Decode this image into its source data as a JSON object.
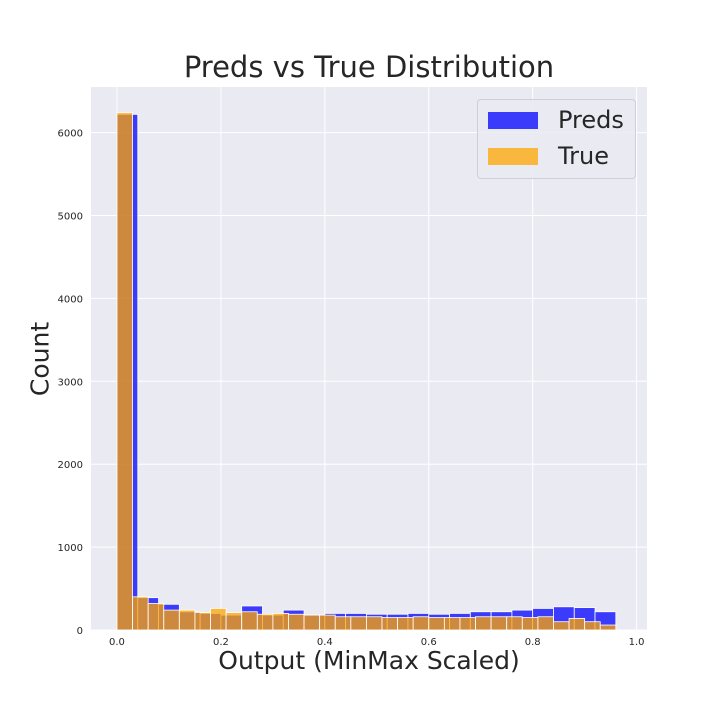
{
  "colors": {
    "background": "#eaeaf2",
    "grid": "#ffffff",
    "preds": "#0000ff",
    "true": "#ffa500",
    "text": "#262626"
  },
  "chart_data": {
    "type": "bar",
    "subtype": "overlapping-histogram",
    "title": "Preds vs True Distribution",
    "xlabel": "Output (MinMax Scaled)",
    "ylabel": "Count",
    "xlim": [
      -0.05,
      1.02
    ],
    "ylim": [
      0,
      6550
    ],
    "xticks": [
      0.0,
      0.2,
      0.4,
      0.6,
      0.8,
      1.0
    ],
    "xtick_labels": [
      "0.0",
      "0.2",
      "0.4",
      "0.6",
      "0.8",
      "1.0"
    ],
    "yticks": [
      0,
      1000,
      2000,
      3000,
      4000,
      5000,
      6000
    ],
    "ytick_labels": [
      "0",
      "1000",
      "2000",
      "3000",
      "4000",
      "5000",
      "6000"
    ],
    "grid": true,
    "legend_position": "top-right",
    "series": [
      {
        "name": "Preds",
        "color": "#0000ff",
        "opacity": 0.75,
        "bin_edges": [
          0.0,
          0.04,
          0.08,
          0.12,
          0.16,
          0.2,
          0.24,
          0.28,
          0.32,
          0.36,
          0.4,
          0.44,
          0.48,
          0.52,
          0.56,
          0.6,
          0.64,
          0.68,
          0.72,
          0.76,
          0.8,
          0.84,
          0.88,
          0.92,
          0.96
        ],
        "values": [
          6220,
          390,
          310,
          220,
          200,
          180,
          290,
          180,
          240,
          180,
          200,
          200,
          190,
          190,
          200,
          190,
          200,
          220,
          220,
          240,
          260,
          280,
          270,
          220
        ]
      },
      {
        "name": "True",
        "color": "#ffa500",
        "opacity": 0.75,
        "bin_edges": [
          0.0,
          0.03,
          0.06,
          0.09,
          0.12,
          0.15,
          0.18,
          0.21,
          0.24,
          0.27,
          0.3,
          0.33,
          0.36,
          0.39,
          0.42,
          0.45,
          0.48,
          0.51,
          0.54,
          0.57,
          0.6,
          0.63,
          0.66,
          0.69,
          0.72,
          0.75,
          0.78,
          0.81,
          0.84,
          0.87,
          0.9,
          0.93
        ],
        "values": [
          6240,
          400,
          320,
          240,
          240,
          210,
          260,
          210,
          220,
          190,
          200,
          190,
          180,
          180,
          160,
          160,
          160,
          150,
          150,
          160,
          150,
          150,
          150,
          160,
          160,
          160,
          150,
          160,
          100,
          140,
          100,
          60
        ]
      }
    ]
  }
}
